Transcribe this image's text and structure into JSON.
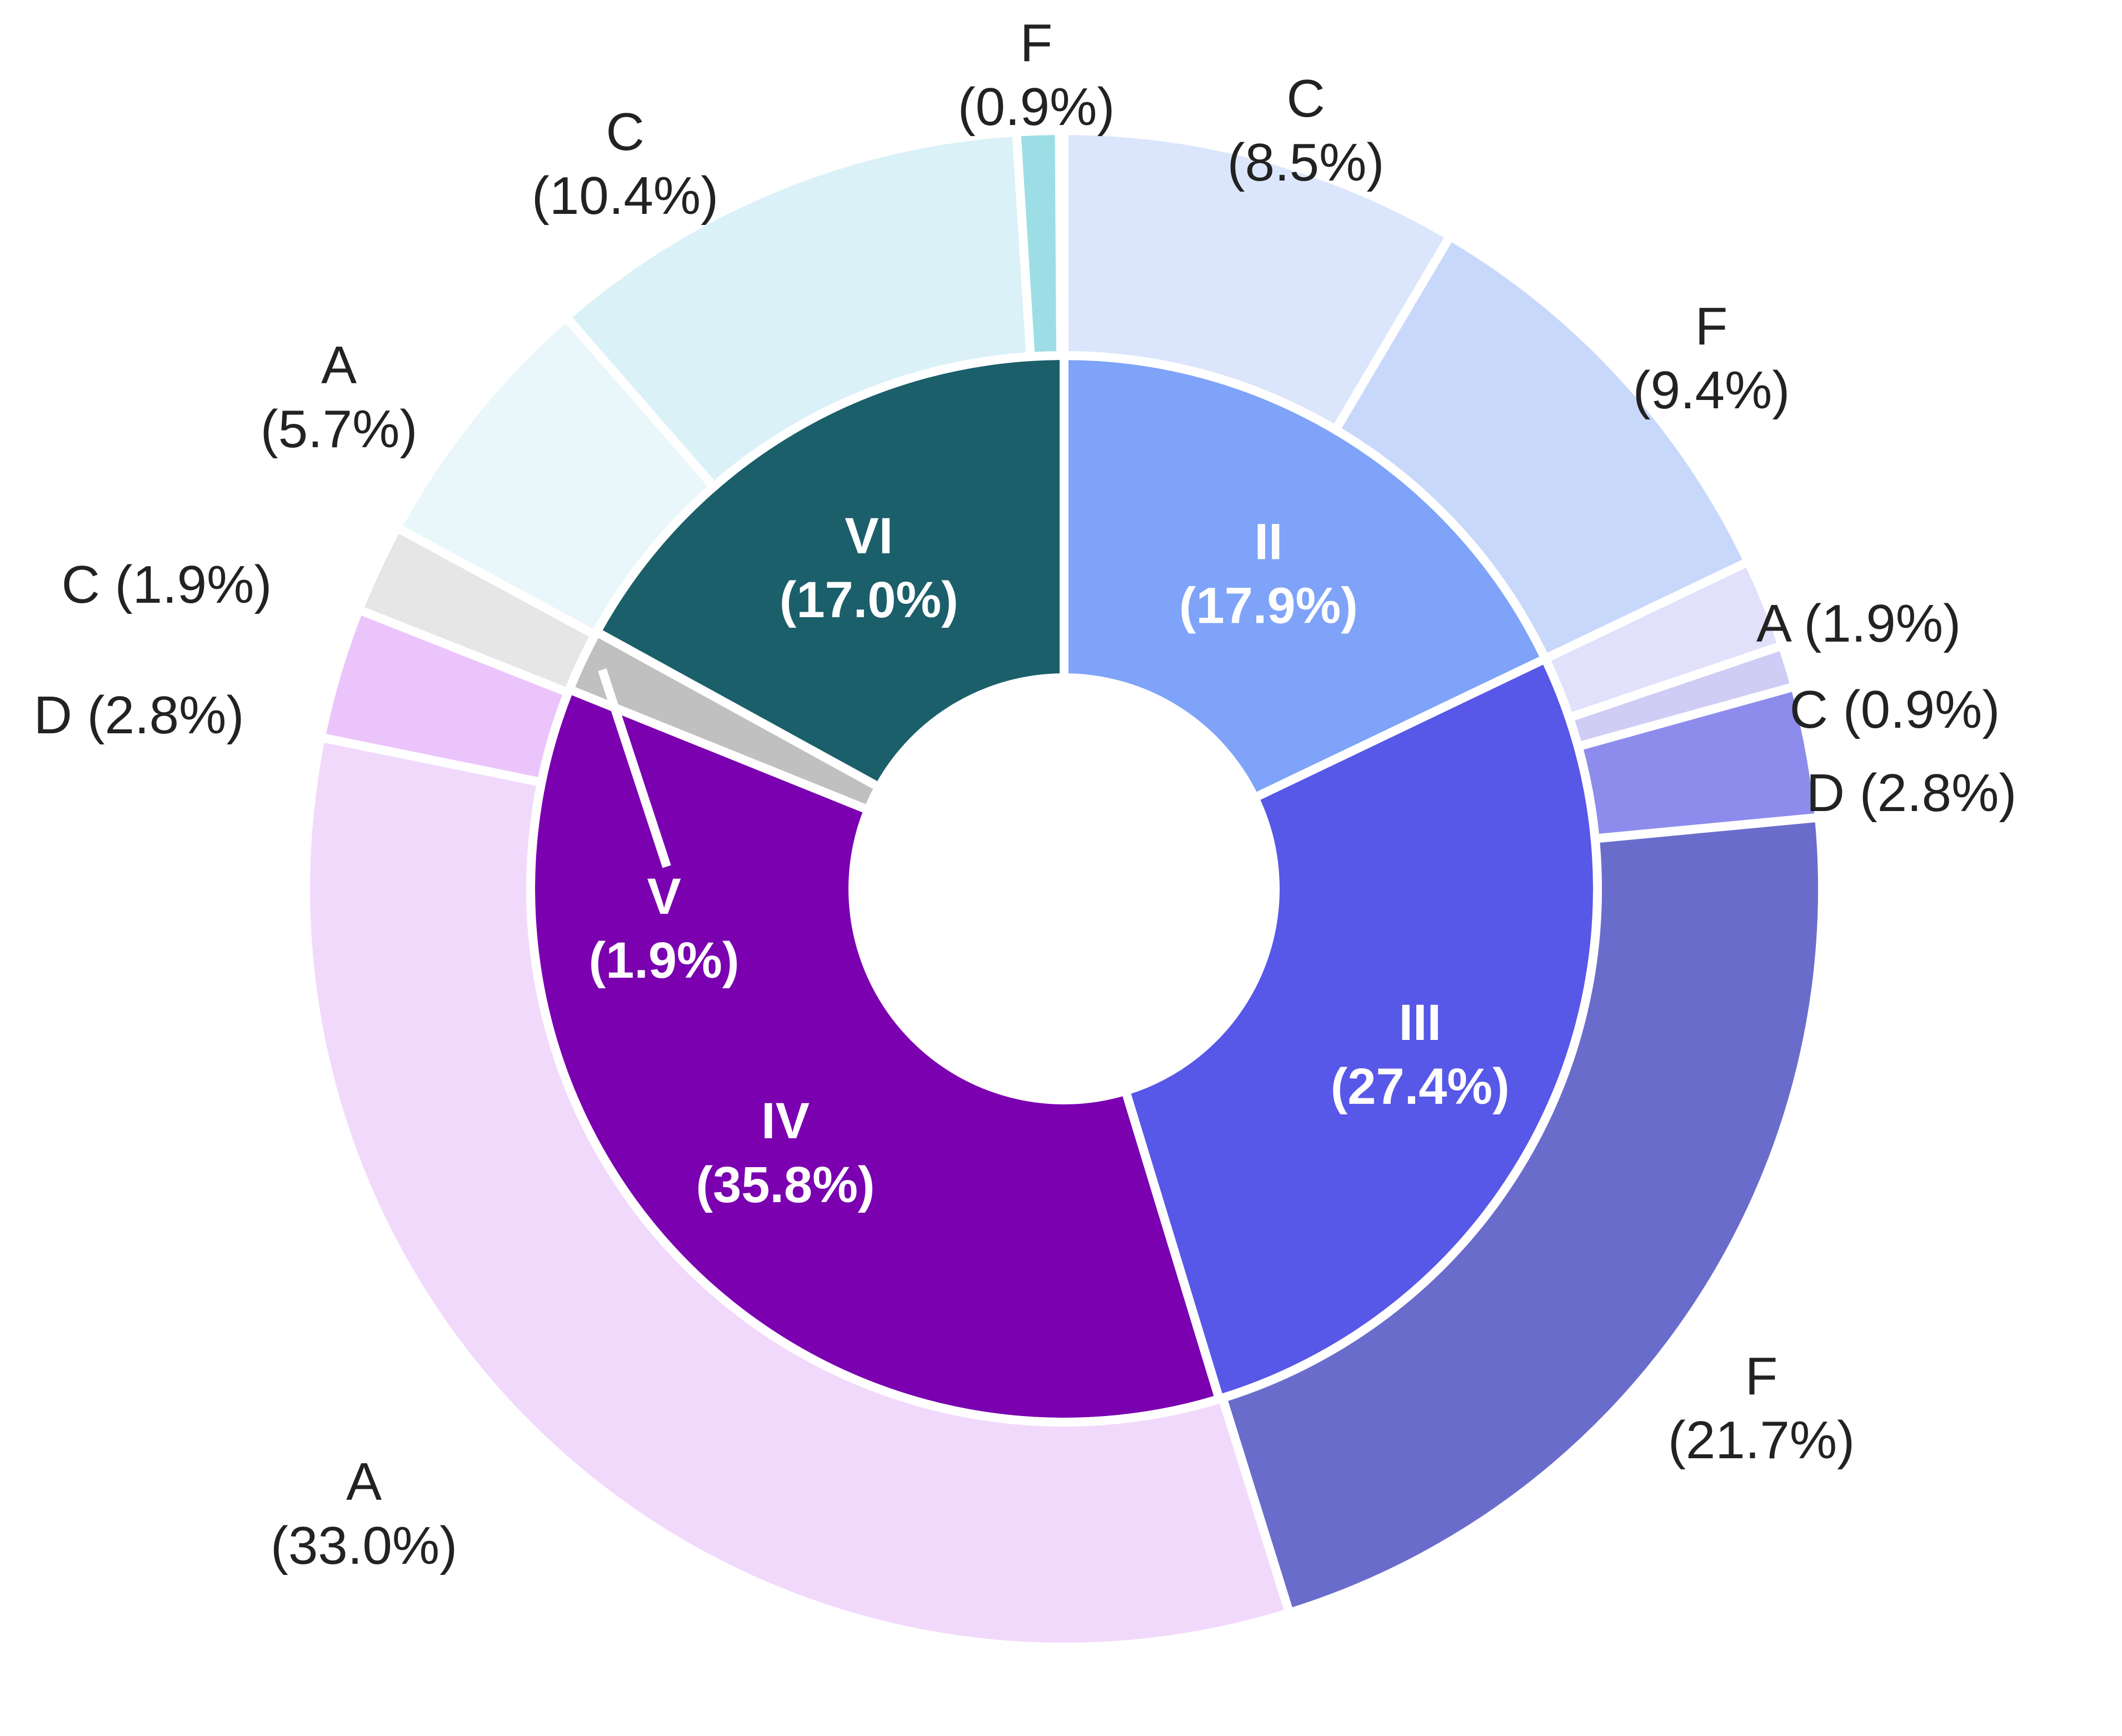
{
  "chart_data": {
    "type": "sunburst",
    "start_angle_deg": 0,
    "direction": "clockwise",
    "inner_ring": [
      {
        "label": "II",
        "value": 17.9,
        "text": "(17.9%)",
        "color": "#7ea3f8"
      },
      {
        "label": "III",
        "value": 27.4,
        "text": "(27.4%)",
        "color": "#5757e8"
      },
      {
        "label": "IV",
        "value": 35.8,
        "text": "(35.8%)",
        "color": "#7a00b0"
      },
      {
        "label": "V",
        "value": 1.9,
        "text": "(1.9%)",
        "color": "#c0c0c0"
      },
      {
        "label": "VI",
        "value": 17.0,
        "text": "(17.0%)",
        "color": "#1b5f6b"
      }
    ],
    "outer_ring": [
      {
        "parent": "II",
        "label": "C",
        "value": 8.5,
        "text": "(8.5%)",
        "color": "#dbe6fc"
      },
      {
        "parent": "II",
        "label": "F",
        "value": 9.4,
        "text": "(9.4%)",
        "color": "#c8d8fb"
      },
      {
        "parent": "III",
        "label": "A",
        "value": 1.9,
        "text": "(1.9%)",
        "color": "#e2e1fb"
      },
      {
        "parent": "III",
        "label": "C",
        "value": 0.9,
        "text": "(0.9%)",
        "color": "#cfcdf5"
      },
      {
        "parent": "III",
        "label": "D",
        "value": 2.8,
        "text": "(2.8%)",
        "color": "#8d8ced"
      },
      {
        "parent": "III",
        "label": "F",
        "value": 21.7,
        "text": "(21.7%)",
        "color": "#6a6ccc"
      },
      {
        "parent": "IV",
        "label": "A",
        "value": 33.0,
        "text": "(33.0%)",
        "color": "#f1d9fc"
      },
      {
        "parent": "IV",
        "label": "D",
        "value": 2.8,
        "text": "(2.8%)",
        "color": "#ecc4fc"
      },
      {
        "parent": "V",
        "label": "C",
        "value": 1.9,
        "text": "(1.9%)",
        "color": "#e6e6e6"
      },
      {
        "parent": "VI",
        "label": "A",
        "value": 5.7,
        "text": "(5.7%)",
        "color": "#e9f6fa"
      },
      {
        "parent": "VI",
        "label": "C",
        "value": 10.4,
        "text": "(10.4%)",
        "color": "#daf1f8"
      },
      {
        "parent": "VI",
        "label": "F",
        "value": 0.9,
        "text": "(0.9%)",
        "color": "#9ddde6"
      }
    ]
  }
}
